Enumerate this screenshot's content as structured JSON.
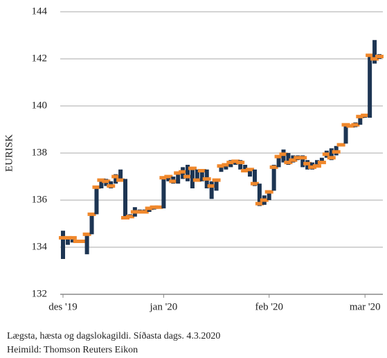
{
  "chart_data": {
    "type": "ohlc",
    "y_label": "EURISK",
    "notes": [
      "Lægsta, hæsta og dagslokagildi. Síðasta dags. 4.3.2020",
      "Heimild: Thomson Reuters Eikon"
    ],
    "categories": [
      "des '19",
      null,
      null,
      null,
      null,
      null,
      null,
      null,
      null,
      null,
      null,
      null,
      null,
      null,
      null,
      null,
      null,
      null,
      null,
      null,
      null,
      "jan '20",
      null,
      null,
      null,
      null,
      null,
      null,
      null,
      null,
      null,
      null,
      null,
      null,
      null,
      null,
      null,
      null,
      null,
      null,
      null,
      null,
      null,
      "feb '20",
      null,
      null,
      null,
      null,
      null,
      null,
      null,
      null,
      null,
      null,
      null,
      null,
      null,
      null,
      null,
      null,
      null,
      null,
      null,
      "mar '20",
      null,
      null,
      null
    ],
    "low": [
      133.5,
      134.1,
      134.2,
      134.2,
      134.2,
      133.7,
      134.55,
      135.4,
      136.5,
      136.6,
      136.5,
      136.7,
      136.8,
      135.2,
      135.25,
      135.3,
      135.45,
      135.45,
      135.5,
      135.6,
      135.65,
      135.65,
      136.8,
      136.7,
      136.7,
      136.9,
      136.8,
      136.5,
      136.8,
      136.8,
      136.5,
      136.05,
      136.4,
      137.2,
      137.3,
      137.4,
      137.5,
      137.3,
      137.2,
      137.0,
      136.6,
      135.75,
      135.8,
      136.0,
      136.4,
      137.4,
      137.6,
      137.5,
      137.6,
      137.7,
      137.4,
      137.3,
      137.3,
      137.4,
      137.55,
      137.8,
      137.7,
      137.9,
      138.3,
      138.4,
      139.1,
      139.1,
      139.2,
      139.5,
      139.5,
      141.8,
      142.0
    ],
    "high": [
      134.7,
      134.45,
      134.45,
      134.3,
      134.3,
      134.6,
      135.4,
      136.6,
      136.9,
      136.9,
      136.8,
      137.1,
      137.3,
      136.9,
      135.4,
      135.7,
      135.6,
      135.6,
      135.7,
      135.75,
      135.75,
      137.0,
      137.05,
      137.0,
      137.2,
      137.4,
      137.5,
      137.4,
      137.3,
      137.3,
      137.3,
      136.8,
      136.9,
      137.5,
      137.55,
      137.7,
      137.7,
      137.7,
      137.5,
      137.3,
      137.3,
      136.7,
      136.2,
      136.4,
      137.5,
      137.9,
      138.15,
      138.0,
      137.9,
      137.9,
      137.9,
      137.7,
      137.6,
      137.7,
      137.8,
      138.1,
      138.2,
      138.3,
      138.4,
      139.2,
      139.2,
      139.3,
      139.6,
      139.6,
      142.2,
      142.8,
      142.2
    ],
    "close": [
      134.4,
      134.4,
      134.4,
      134.25,
      134.25,
      134.55,
      135.4,
      136.55,
      136.85,
      136.8,
      136.6,
      137.0,
      136.85,
      135.25,
      135.3,
      135.5,
      135.5,
      135.5,
      135.65,
      135.7,
      135.7,
      136.95,
      137.0,
      136.8,
      137.15,
      137.2,
      137.0,
      137.35,
      136.85,
      137.25,
      136.9,
      136.6,
      136.85,
      137.45,
      137.5,
      137.6,
      137.65,
      137.6,
      137.25,
      137.3,
      136.7,
      135.85,
      136.0,
      136.35,
      137.4,
      137.85,
      137.95,
      137.6,
      137.7,
      137.8,
      137.8,
      137.55,
      137.4,
      137.45,
      137.6,
      137.95,
      137.8,
      138.05,
      138.35,
      139.2,
      139.15,
      139.2,
      139.55,
      139.6,
      142.15,
      142.0,
      142.1
    ],
    "range_color": "#1d3553",
    "close_color": "#f0882c",
    "ylim": [
      132,
      144
    ],
    "yticks": [
      132,
      134,
      136,
      138,
      140,
      142,
      144
    ],
    "grid": true
  }
}
